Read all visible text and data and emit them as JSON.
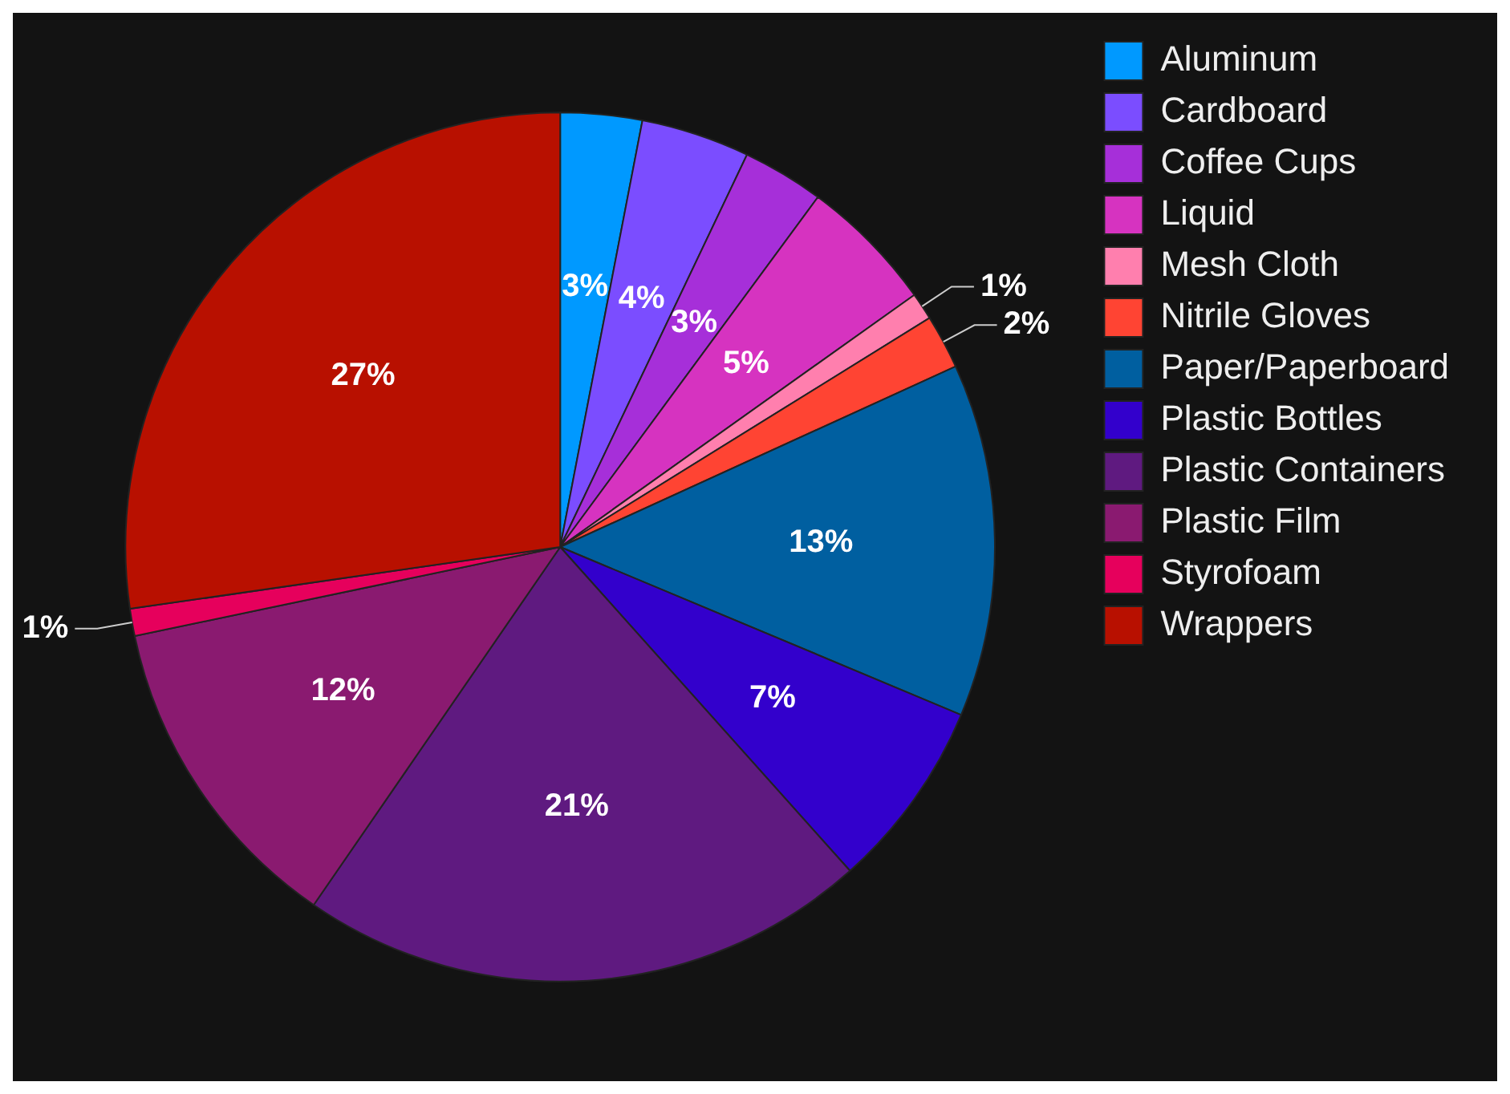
{
  "chart_data": {
    "type": "pie",
    "categories": [
      "Aluminum",
      "Cardboard",
      "Coffee Cups",
      "Liquid",
      "Mesh Cloth",
      "Nitrile Gloves",
      "Paper/Paperboard",
      "Plastic Bottles",
      "Plastic Containers",
      "Plastic Film",
      "Styrofoam",
      "Wrappers"
    ],
    "values": [
      3,
      4,
      3,
      5,
      1,
      2,
      13,
      7,
      21,
      12,
      1,
      27
    ],
    "colors": [
      "#0099ff",
      "#7b4dff",
      "#a62fd9",
      "#d633c0",
      "#ff7fae",
      "#ff4433",
      "#005fa0",
      "#3300cc",
      "#5f1a80",
      "#8a1a70",
      "#e6005c",
      "#b81000"
    ],
    "value_labels": [
      "3%",
      "4%",
      "3%",
      "5%",
      "1%",
      "2%",
      "13%",
      "7%",
      "21%",
      "12%",
      "1%",
      "27%"
    ],
    "legend": "top right"
  }
}
